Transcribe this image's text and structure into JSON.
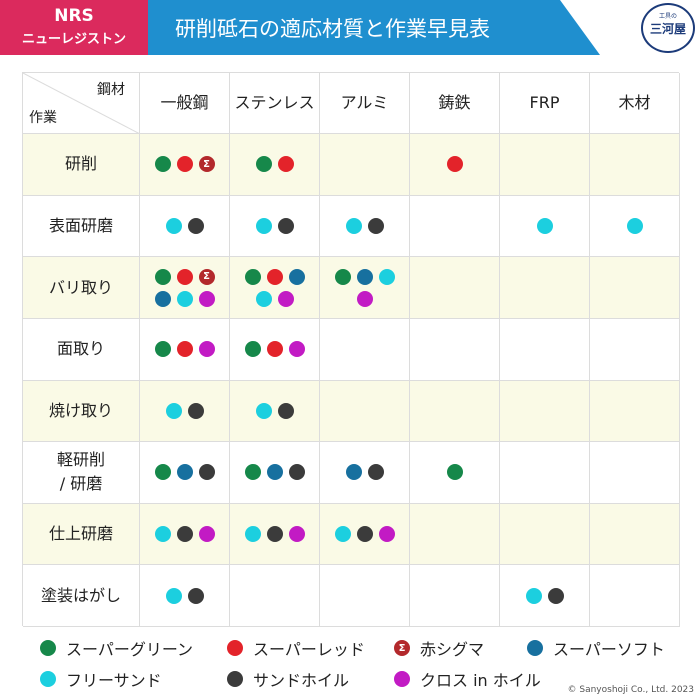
{
  "header": {
    "brand": "NRS",
    "brand_sub": "ニューレジストン",
    "title": "研削砥石の適応材質と作業早見表",
    "logo": "三河屋",
    "logo_sub": "工具の"
  },
  "table": {
    "corner_material": "鋼材",
    "corner_work": "作業",
    "columns": [
      "一般鋼",
      "ステンレス",
      "アルミ",
      "鋳鉄",
      "FRP",
      "木材"
    ],
    "rows": [
      {
        "label": "研削",
        "cells": [
          [
            "スーパーグリーン",
            "スーパーレッド",
            "赤シグマ"
          ],
          [
            "スーパーグリーン",
            "スーパーレッド"
          ],
          [],
          [
            "スーパーレッド"
          ],
          [],
          []
        ]
      },
      {
        "label": "表面研磨",
        "cells": [
          [
            "フリーサンド",
            "サンドホイル"
          ],
          [
            "フリーサンド",
            "サンドホイル"
          ],
          [
            "フリーサンド",
            "サンドホイル"
          ],
          [],
          [
            "フリーサンド"
          ],
          [
            "フリーサンド"
          ]
        ]
      },
      {
        "label": "バリ取り",
        "cells": [
          [
            "スーパーグリーン",
            "スーパーレッド",
            "赤シグマ",
            "スーパーソフト",
            "フリーサンド",
            "クロス in ホイル"
          ],
          [
            "スーパーグリーン",
            "スーパーレッド",
            "スーパーソフト",
            "フリーサンド",
            "クロス in ホイル"
          ],
          [
            "スーパーグリーン",
            "スーパーソフト",
            "フリーサンド",
            "クロス in ホイル"
          ],
          [],
          [],
          []
        ]
      },
      {
        "label": "面取り",
        "cells": [
          [
            "スーパーグリーン",
            "スーパーレッド",
            "クロス in ホイル"
          ],
          [
            "スーパーグリーン",
            "スーパーレッド",
            "クロス in ホイル"
          ],
          [],
          [],
          [],
          []
        ]
      },
      {
        "label": "焼け取り",
        "cells": [
          [
            "フリーサンド",
            "サンドホイル"
          ],
          [
            "フリーサンド",
            "サンドホイル"
          ],
          [],
          [],
          [],
          []
        ]
      },
      {
        "label": "軽研削\n/ 研磨",
        "cells": [
          [
            "スーパーグリーン",
            "スーパーソフト",
            "サンドホイル"
          ],
          [
            "スーパーグリーン",
            "スーパーソフト",
            "サンドホイル"
          ],
          [
            "スーパーソフト",
            "サンドホイル"
          ],
          [
            "スーパーグリーン"
          ],
          [],
          []
        ]
      },
      {
        "label": "仕上研磨",
        "cells": [
          [
            "フリーサンド",
            "サンドホイル",
            "クロス in ホイル"
          ],
          [
            "フリーサンド",
            "サンドホイル",
            "クロス in ホイル"
          ],
          [
            "フリーサンド",
            "サンドホイル",
            "クロス in ホイル"
          ],
          [],
          [],
          []
        ]
      },
      {
        "label": "塗装はがし",
        "cells": [
          [
            "フリーサンド",
            "サンドホイル"
          ],
          [],
          [],
          [],
          [
            "フリーサンド",
            "サンドホイル"
          ],
          []
        ]
      }
    ]
  },
  "legend": [
    {
      "name": "スーパーグリーン",
      "color": "#16884a"
    },
    {
      "name": "スーパーレッド",
      "color": "#e3232a"
    },
    {
      "name": "赤シグマ",
      "color": "#b3292c",
      "symbol": "Σ"
    },
    {
      "name": "スーパーソフト",
      "color": "#17709f"
    },
    {
      "name": "フリーサンド",
      "color": "#1ccfdf"
    },
    {
      "name": "サンドホイル",
      "color": "#3b3b3b"
    },
    {
      "name": "クロス in ホイル",
      "color": "#c21bc4"
    }
  ],
  "copyright": "© Sanyoshoji Co., Ltd. 2023"
}
